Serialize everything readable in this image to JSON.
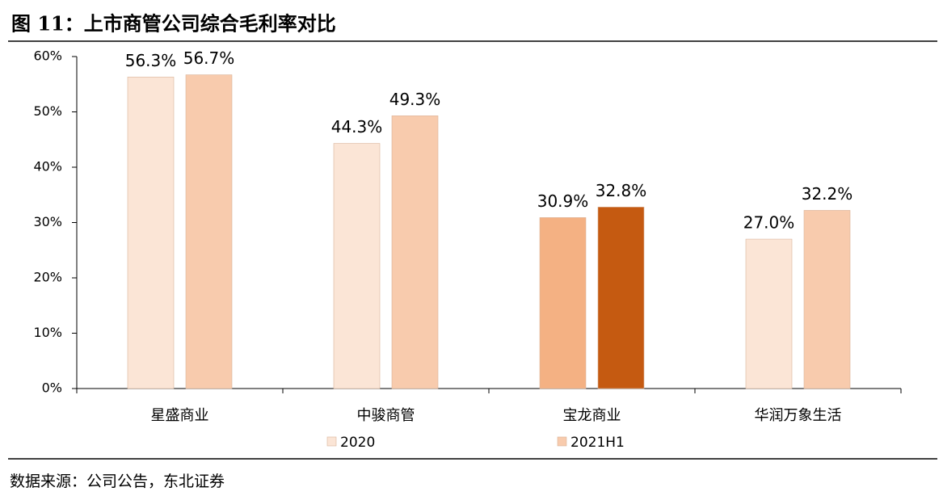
{
  "chart_data": {
    "type": "bar",
    "title": "图 11：上市商管公司综合毛利率对比",
    "source": "数据来源：公司公告，东北证券",
    "categories": [
      "星盛商业",
      "中骏商管",
      "宝龙商业",
      "华润万象生活"
    ],
    "series": [
      {
        "name": "2020",
        "color": "#fbe5d6",
        "colors": [
          "#fbe5d6",
          "#fbe5d6",
          "#f4b183",
          "#fbe5d6"
        ],
        "values": [
          56.3,
          44.3,
          30.9,
          27.0
        ],
        "value_labels": [
          "56.3%",
          "44.3%",
          "30.9%",
          "27.0%"
        ]
      },
      {
        "name": "2021H1",
        "color": "#f8cbad",
        "colors": [
          "#f8cbad",
          "#f8cbad",
          "#c55a11",
          "#f8cbad"
        ],
        "values": [
          56.7,
          49.3,
          32.8,
          32.2
        ],
        "value_labels": [
          "56.7%",
          "49.3%",
          "32.8%",
          "32.2%"
        ]
      }
    ],
    "ylim": [
      0,
      60
    ],
    "yticks": [
      {
        "value": 0,
        "label": "0%"
      },
      {
        "value": 10,
        "label": "10%"
      },
      {
        "value": 20,
        "label": "20%"
      },
      {
        "value": 30,
        "label": "30%"
      },
      {
        "value": 40,
        "label": "40%"
      },
      {
        "value": 50,
        "label": "50%"
      },
      {
        "value": 60,
        "label": "60%"
      }
    ],
    "grid": false
  }
}
